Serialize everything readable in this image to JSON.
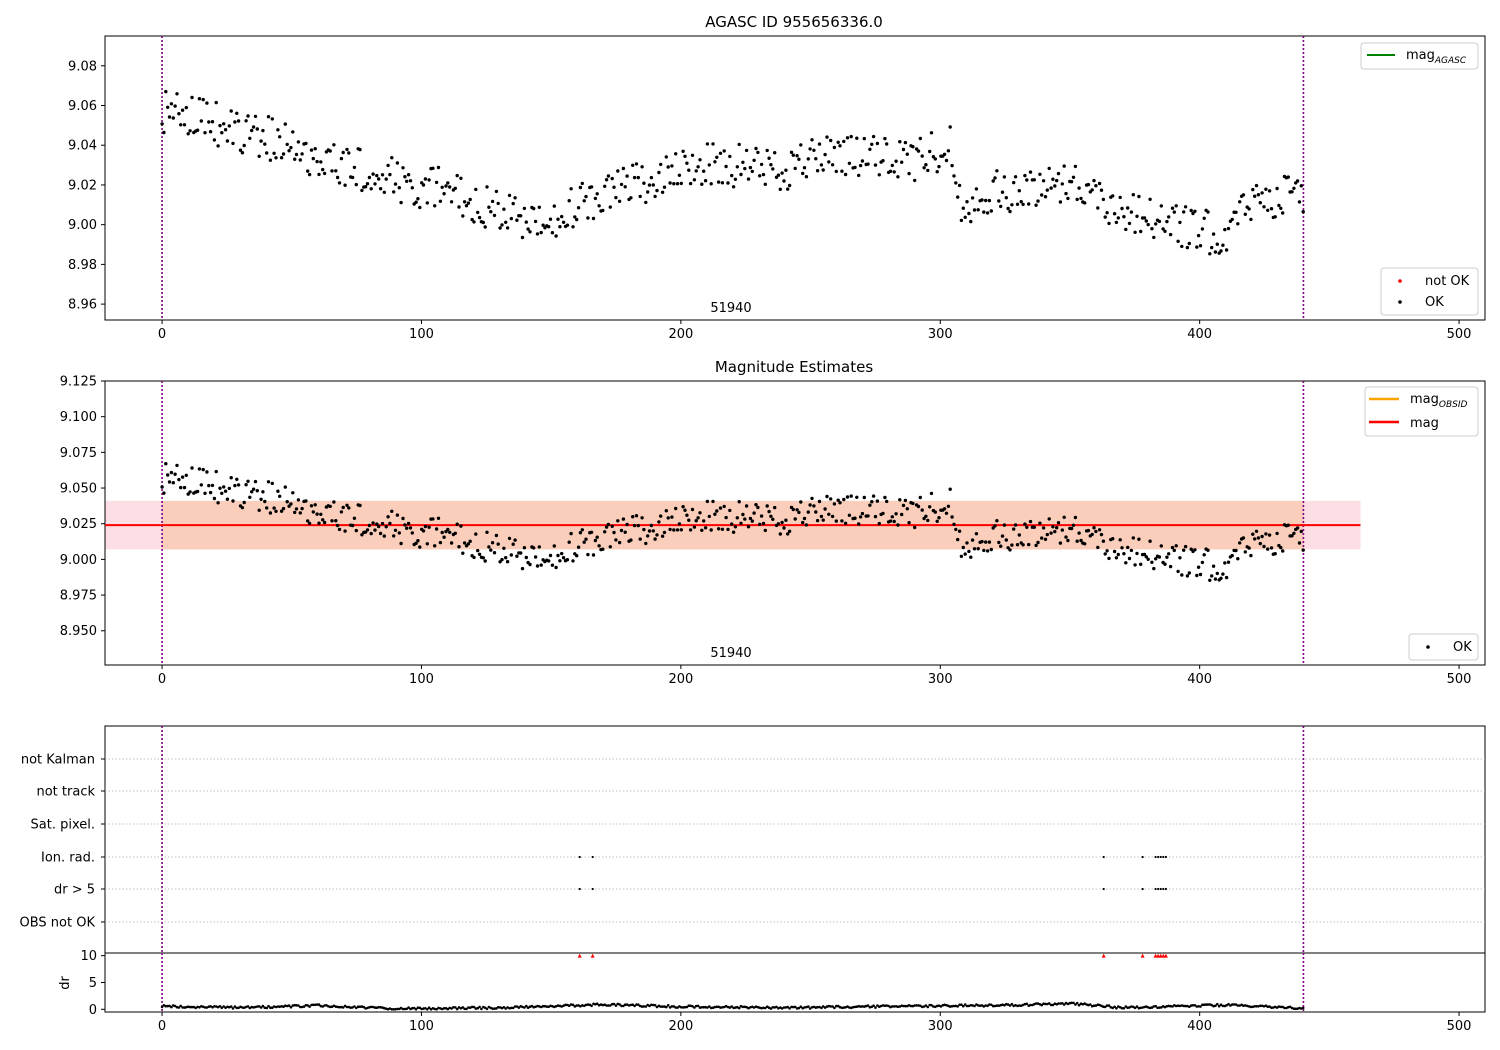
{
  "colors": {
    "ok_points": "#000000",
    "not_ok_points": "#ff0000",
    "mag_agasc_line": "#008000",
    "mag_obsid_line": "#ffa500",
    "mag_line": "#ff0000",
    "band_inner": "#f9c9b0",
    "band_outer": "#fdd3dc",
    "boundary_line": "#800080",
    "grid": "#b0b0b0"
  },
  "chart_data": [
    {
      "type": "scatter",
      "title": "AGASC ID 955656336.0",
      "xlim": [
        -22,
        510
      ],
      "ylim": [
        8.952,
        9.095
      ],
      "xticks": [
        0,
        100,
        200,
        300,
        400,
        500
      ],
      "yticks": [
        8.96,
        8.98,
        9.0,
        9.02,
        9.04,
        9.06,
        9.08
      ],
      "tick_decimals": 2,
      "obsid_boundaries": [
        0,
        440
      ],
      "annotation": {
        "text": "51940",
        "x": 220,
        "y": 8.956
      },
      "legend_upper": {
        "placement": "upper right",
        "entries": [
          {
            "label": "mag",
            "sub": "AGASC",
            "kind": "line",
            "color_key": "mag_agasc_line"
          }
        ]
      },
      "legend_lower": {
        "placement": "lower right",
        "entries": [
          {
            "label": "not OK",
            "kind": "point",
            "color_key": "not_ok_points"
          },
          {
            "label": "OK",
            "kind": "point",
            "color_key": "ok_points"
          }
        ]
      },
      "series": [
        {
          "name": "OK",
          "trend": [
            [
              0,
              9.057
            ],
            [
              10,
              9.054
            ],
            [
              20,
              9.051
            ],
            [
              30,
              9.047
            ],
            [
              40,
              9.044
            ],
            [
              50,
              9.039
            ],
            [
              60,
              9.033
            ],
            [
              70,
              9.028
            ],
            [
              80,
              9.027
            ],
            [
              90,
              9.022
            ],
            [
              100,
              9.019
            ],
            [
              110,
              9.02
            ],
            [
              120,
              9.012
            ],
            [
              130,
              9.007
            ],
            [
              140,
              9.0
            ],
            [
              150,
              9.003
            ],
            [
              160,
              9.01
            ],
            [
              170,
              9.014
            ],
            [
              180,
              9.02
            ],
            [
              190,
              9.021
            ],
            [
              200,
              9.026
            ],
            [
              210,
              9.031
            ],
            [
              220,
              9.03
            ],
            [
              230,
              9.029
            ],
            [
              240,
              9.028
            ],
            [
              250,
              9.033
            ],
            [
              260,
              9.036
            ],
            [
              270,
              9.034
            ],
            [
              280,
              9.033
            ],
            [
              290,
              9.033
            ],
            [
              300,
              9.038
            ],
            [
              304,
              9.04
            ],
            [
              308,
              9.01
            ],
            [
              320,
              9.017
            ],
            [
              330,
              9.015
            ],
            [
              340,
              9.02
            ],
            [
              350,
              9.023
            ],
            [
              360,
              9.015
            ],
            [
              370,
              9.007
            ],
            [
              380,
              9.005
            ],
            [
              390,
              9.0
            ],
            [
              400,
              8.997
            ],
            [
              410,
              8.995
            ],
            [
              420,
              9.012
            ],
            [
              430,
              9.015
            ],
            [
              440,
              9.015
            ]
          ],
          "scatter": 0.011,
          "step": 0.72
        }
      ]
    },
    {
      "type": "scatter",
      "title": "Magnitude Estimates",
      "xlim": [
        -22,
        510
      ],
      "ylim": [
        8.926,
        9.125
      ],
      "xticks": [
        0,
        100,
        200,
        300,
        400,
        500
      ],
      "yticks": [
        8.925,
        8.95,
        8.975,
        9.0,
        9.025,
        9.05,
        9.075,
        9.1,
        9.125
      ],
      "tick_decimals": 3,
      "obsid_boundaries": [
        0,
        440
      ],
      "annotation": {
        "text": "51940",
        "x": 220,
        "y": 8.929
      },
      "mag_line": {
        "y": 9.024,
        "x0": -22,
        "x1": 462
      },
      "band_inner": {
        "y0": 9.007,
        "y1": 9.041,
        "x0": 0,
        "x1": 440
      },
      "band_outer": {
        "y0": 9.007,
        "y1": 9.041,
        "x0": -22,
        "x1": 462
      },
      "legend_upper": {
        "placement": "upper right",
        "entries": [
          {
            "label": "mag",
            "sub": "OBSID",
            "kind": "line",
            "color_key": "mag_obsid_line"
          },
          {
            "label": "mag",
            "kind": "line",
            "color_key": "mag_line"
          }
        ]
      },
      "legend_lower": {
        "placement": "lower right",
        "entries": [
          {
            "label": "OK",
            "kind": "point",
            "color_key": "ok_points"
          }
        ]
      },
      "series": [
        {
          "name": "OK",
          "same_as_panel": 0
        }
      ]
    },
    {
      "type": "scatter",
      "xlim": [
        -22,
        510
      ],
      "xticks": [
        0,
        100,
        200,
        300,
        400,
        500
      ],
      "obsid_boundaries": [
        0,
        440
      ],
      "flag_rows": [
        "not Kalman",
        "not track",
        "Sat. pixel.",
        "Ion. rad.",
        "dr > 5",
        "OBS not OK"
      ],
      "flag_points": {
        "Ion. rad.": [
          161,
          166,
          363,
          378,
          383,
          384,
          385,
          386,
          387
        ],
        "dr > 5": [
          161,
          166,
          363,
          378,
          383,
          384,
          385,
          386,
          387
        ],
        "OBS not OK": []
      },
      "dr_panel": {
        "ylabel": "dr",
        "yticks": [
          0,
          5,
          10
        ],
        "ylim": [
          -0.5,
          10.5
        ],
        "high_dr_x": [
          161,
          166,
          363,
          378,
          383,
          384,
          385,
          386,
          387
        ],
        "high_dr_value": 10,
        "baseline_trend": [
          [
            0,
            0.6
          ],
          [
            30,
            0.3
          ],
          [
            60,
            0.7
          ],
          [
            90,
            0.1
          ],
          [
            130,
            0.3
          ],
          [
            170,
            0.9
          ],
          [
            200,
            0.5
          ],
          [
            240,
            0.3
          ],
          [
            290,
            0.6
          ],
          [
            330,
            0.8
          ],
          [
            350,
            1.1
          ],
          [
            370,
            0.3
          ],
          [
            410,
            0.8
          ],
          [
            440,
            0.2
          ]
        ]
      }
    }
  ]
}
